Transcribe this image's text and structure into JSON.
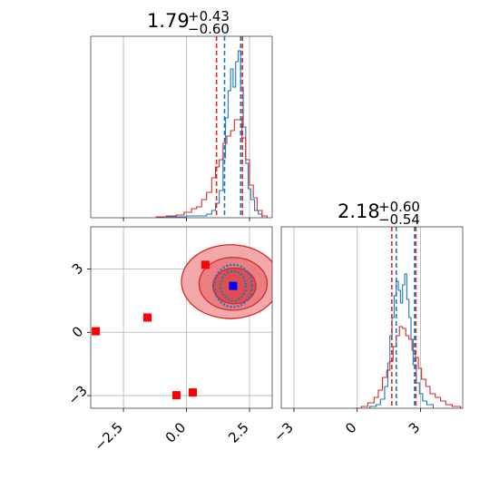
{
  "chart_data": [
    {
      "panel": "marginal-x",
      "type": "histogram",
      "title": {
        "value": "1.79",
        "upper": "+0.43",
        "lower": "−0.60"
      },
      "xlim": [
        -3.8,
        3.4
      ],
      "grid": true,
      "grid_x": [
        -2.5,
        0.0,
        2.5
      ],
      "series": [
        {
          "color": "#1f77b4",
          "bins": [
            {
              "x": -1.2,
              "y": 0
            },
            {
              "x": -0.9,
              "y": 0.005
            },
            {
              "x": -0.6,
              "y": 0.005
            },
            {
              "x": 0.0,
              "y": 0.01
            },
            {
              "x": 0.4,
              "y": 0.01
            },
            {
              "x": 0.8,
              "y": 0.02
            },
            {
              "x": 1.0,
              "y": 0.04
            },
            {
              "x": 1.15,
              "y": 0.08
            },
            {
              "x": 1.3,
              "y": 0.15
            },
            {
              "x": 1.45,
              "y": 0.33
            },
            {
              "x": 1.55,
              "y": 0.55
            },
            {
              "x": 1.65,
              "y": 0.7
            },
            {
              "x": 1.75,
              "y": 0.82
            },
            {
              "x": 1.85,
              "y": 0.72
            },
            {
              "x": 1.95,
              "y": 0.86
            },
            {
              "x": 2.05,
              "y": 0.92
            },
            {
              "x": 2.15,
              "y": 0.72
            },
            {
              "x": 2.25,
              "y": 0.5
            },
            {
              "x": 2.35,
              "y": 0.3
            },
            {
              "x": 2.45,
              "y": 0.16
            },
            {
              "x": 2.55,
              "y": 0.1
            },
            {
              "x": 2.7,
              "y": 0.04
            },
            {
              "x": 2.85,
              "y": 0.02
            },
            {
              "x": 3.0,
              "y": 0.0
            }
          ]
        },
        {
          "color": "#d62728",
          "bins": [
            {
              "x": -1.2,
              "y": 0.005
            },
            {
              "x": -0.8,
              "y": 0.01
            },
            {
              "x": -0.4,
              "y": 0.015
            },
            {
              "x": -0.1,
              "y": 0.03
            },
            {
              "x": 0.2,
              "y": 0.05
            },
            {
              "x": 0.4,
              "y": 0.06
            },
            {
              "x": 0.6,
              "y": 0.1
            },
            {
              "x": 0.8,
              "y": 0.14
            },
            {
              "x": 1.0,
              "y": 0.22
            },
            {
              "x": 1.15,
              "y": 0.28
            },
            {
              "x": 1.3,
              "y": 0.32
            },
            {
              "x": 1.45,
              "y": 0.41
            },
            {
              "x": 1.6,
              "y": 0.45
            },
            {
              "x": 1.75,
              "y": 0.48
            },
            {
              "x": 1.9,
              "y": 0.54
            },
            {
              "x": 2.05,
              "y": 0.54
            },
            {
              "x": 2.2,
              "y": 0.44
            },
            {
              "x": 2.35,
              "y": 0.32
            },
            {
              "x": 2.5,
              "y": 0.18
            },
            {
              "x": 2.65,
              "y": 0.11
            },
            {
              "x": 2.8,
              "y": 0.04
            },
            {
              "x": 3.0,
              "y": 0.01
            },
            {
              "x": 3.2,
              "y": 0.0
            }
          ]
        }
      ],
      "vlines": [
        {
          "x": 1.19,
          "color": "#d62728",
          "style": "dashed"
        },
        {
          "x": 2.22,
          "color": "#d62728",
          "style": "dashed"
        },
        {
          "x": 1.51,
          "color": "#1f77b4",
          "style": "dashed"
        },
        {
          "x": 2.15,
          "color": "#1f77b4",
          "style": "dashed"
        }
      ]
    },
    {
      "panel": "joint",
      "type": "scatter",
      "xlim": [
        -3.8,
        3.4
      ],
      "ylim": [
        -3.6,
        5.0
      ],
      "grid": true,
      "grid_x": [
        -2.5,
        0.0,
        2.5
      ],
      "grid_y": [
        -3,
        0,
        3
      ],
      "x_tick_labels": [
        "−2.5",
        "0.0",
        "2.5"
      ],
      "y_tick_labels": [
        "−3",
        "0",
        "3"
      ],
      "contours_red": [
        {
          "cx": 1.75,
          "cy": 2.4,
          "rx": 1.95,
          "ry": 1.75,
          "fill": "#f1a9aa",
          "stroke": "#d62728"
        },
        {
          "cx": 1.85,
          "cy": 2.3,
          "rx": 1.35,
          "ry": 1.25,
          "fill": "#ea7e80",
          "stroke": "#d62728"
        },
        {
          "cx": 1.9,
          "cy": 2.2,
          "rx": 0.85,
          "ry": 0.85,
          "fill": "#df4f52",
          "stroke": "#d62728"
        }
      ],
      "contours_blue": [
        {
          "cx": 1.85,
          "cy": 2.2,
          "rx": 0.75,
          "ry": 1.0,
          "stroke": "#1f77b4"
        },
        {
          "cx": 1.85,
          "cy": 2.2,
          "rx": 0.5,
          "ry": 0.7,
          "stroke": "#1f77b4"
        }
      ],
      "markers_red": [
        {
          "x": 0.75,
          "y": 3.2
        },
        {
          "x": -3.6,
          "y": 0.05
        },
        {
          "x": -1.55,
          "y": 0.7
        },
        {
          "x": -0.4,
          "y": -2.98
        },
        {
          "x": 0.25,
          "y": -2.85
        }
      ],
      "markers_blue": [
        {
          "x": 1.85,
          "y": 2.2
        }
      ]
    },
    {
      "panel": "marginal-y",
      "type": "histogram",
      "title": {
        "value": "2.18",
        "upper": "+0.60",
        "lower": "−0.54"
      },
      "xlim": [
        -3.6,
        5.0
      ],
      "grid": true,
      "grid_x": [
        -3,
        0,
        3
      ],
      "x_tick_labels": [
        "−3",
        "0",
        "3"
      ],
      "series": [
        {
          "color": "#1f77b4",
          "bins": [
            {
              "x": 0.3,
              "y": 0.0
            },
            {
              "x": 0.6,
              "y": 0.01
            },
            {
              "x": 0.9,
              "y": 0.02
            },
            {
              "x": 1.1,
              "y": 0.05
            },
            {
              "x": 1.3,
              "y": 0.12
            },
            {
              "x": 1.45,
              "y": 0.25
            },
            {
              "x": 1.55,
              "y": 0.4
            },
            {
              "x": 1.65,
              "y": 0.5
            },
            {
              "x": 1.75,
              "y": 0.62
            },
            {
              "x": 1.85,
              "y": 0.7
            },
            {
              "x": 1.95,
              "y": 0.65
            },
            {
              "x": 2.05,
              "y": 0.58
            },
            {
              "x": 2.15,
              "y": 0.68
            },
            {
              "x": 2.25,
              "y": 0.74
            },
            {
              "x": 2.35,
              "y": 0.6
            },
            {
              "x": 2.45,
              "y": 0.5
            },
            {
              "x": 2.55,
              "y": 0.38
            },
            {
              "x": 2.65,
              "y": 0.24
            },
            {
              "x": 2.8,
              "y": 0.14
            },
            {
              "x": 2.95,
              "y": 0.08
            },
            {
              "x": 3.1,
              "y": 0.04
            },
            {
              "x": 3.3,
              "y": 0.02
            },
            {
              "x": 3.6,
              "y": 0.0
            }
          ]
        },
        {
          "color": "#d62728",
          "bins": [
            {
              "x": -0.2,
              "y": 0.0
            },
            {
              "x": 0.2,
              "y": 0.01
            },
            {
              "x": 0.5,
              "y": 0.03
            },
            {
              "x": 0.8,
              "y": 0.06
            },
            {
              "x": 1.0,
              "y": 0.1
            },
            {
              "x": 1.2,
              "y": 0.17
            },
            {
              "x": 1.4,
              "y": 0.21
            },
            {
              "x": 1.55,
              "y": 0.26
            },
            {
              "x": 1.7,
              "y": 0.34
            },
            {
              "x": 1.85,
              "y": 0.4
            },
            {
              "x": 2.0,
              "y": 0.45
            },
            {
              "x": 2.15,
              "y": 0.44
            },
            {
              "x": 2.3,
              "y": 0.4
            },
            {
              "x": 2.45,
              "y": 0.38
            },
            {
              "x": 2.6,
              "y": 0.32
            },
            {
              "x": 2.75,
              "y": 0.28
            },
            {
              "x": 2.9,
              "y": 0.22
            },
            {
              "x": 3.05,
              "y": 0.16
            },
            {
              "x": 3.25,
              "y": 0.12
            },
            {
              "x": 3.45,
              "y": 0.08
            },
            {
              "x": 3.7,
              "y": 0.06
            },
            {
              "x": 3.95,
              "y": 0.04
            },
            {
              "x": 4.2,
              "y": 0.02
            },
            {
              "x": 4.5,
              "y": 0.01
            },
            {
              "x": 4.9,
              "y": 0.0
            }
          ]
        }
      ],
      "vlines": [
        {
          "x": 1.64,
          "color": "#d62728",
          "style": "dashed"
        },
        {
          "x": 2.78,
          "color": "#d62728",
          "style": "dashed"
        },
        {
          "x": 1.85,
          "color": "#1f77b4",
          "style": "dashed"
        },
        {
          "x": 2.72,
          "color": "#1f77b4",
          "style": "dashed"
        }
      ]
    }
  ]
}
